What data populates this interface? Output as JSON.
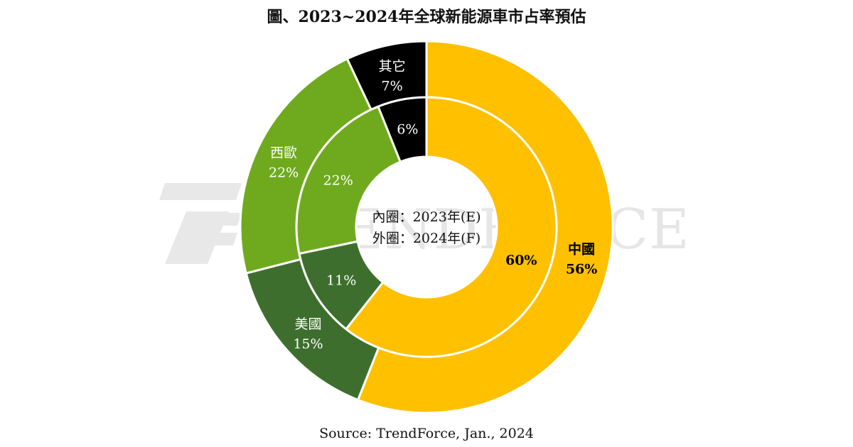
{
  "chart_data": {
    "type": "pie",
    "title": "圖、2023~2024年全球新能源車市占率預估",
    "center_labels": [
      "內圈：2023年(E)",
      "外圈：2024年(F)"
    ],
    "categories": [
      "中國",
      "美國",
      "西歐",
      "其它"
    ],
    "series": [
      {
        "ring": "inner",
        "values": [
          60,
          11,
          22,
          6
        ],
        "labels": [
          "60%",
          "11%",
          "22%",
          "6%"
        ]
      },
      {
        "ring": "outer",
        "values": [
          56,
          15,
          22,
          7
        ],
        "labels": [
          "56%",
          "15%",
          "22%",
          "7%"
        ]
      }
    ],
    "colors": [
      "#FFC000",
      "#3E6E2E",
      "#6FAA1E",
      "#000000"
    ],
    "text_colors": [
      "#000000",
      "#FFFFFF",
      "#FFFFFF",
      "#FFFFFF"
    ],
    "grid": false,
    "legend": "none"
  },
  "watermark": {
    "text": "TRENDFORCE"
  },
  "source": "Source: TrendForce, Jan., 2024"
}
